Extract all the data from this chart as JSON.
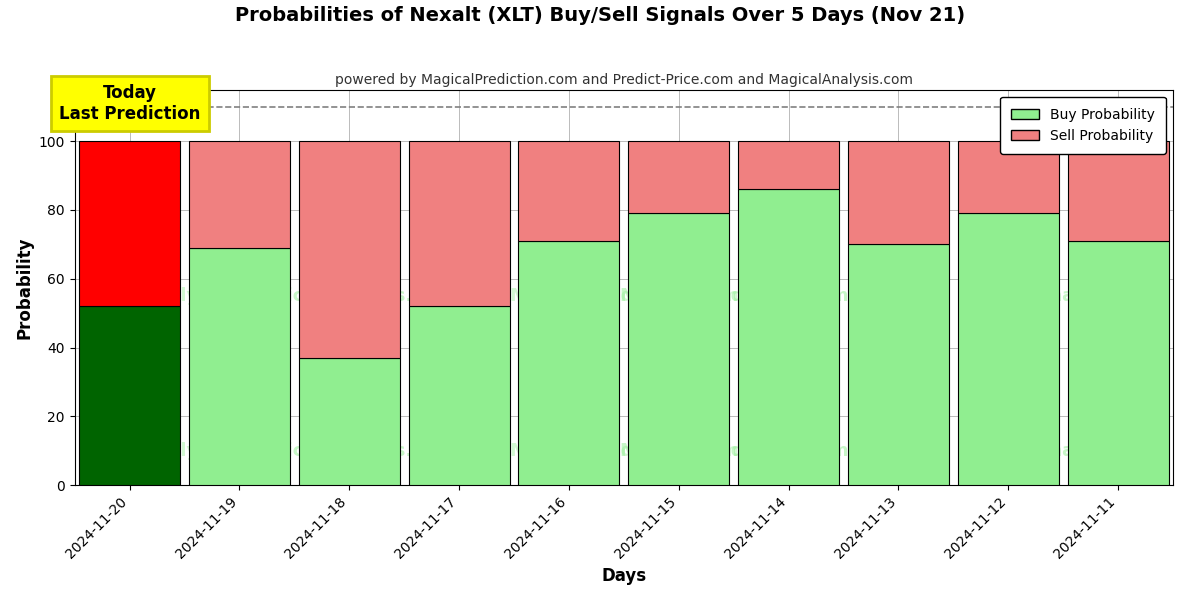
{
  "title": "Probabilities of Nexalt (XLT) Buy/Sell Signals Over 5 Days (Nov 21)",
  "subtitle": "powered by MagicalPrediction.com and Predict-Price.com and MagicalAnalysis.com",
  "xlabel": "Days",
  "ylabel": "Probability",
  "categories": [
    "2024-11-20",
    "2024-11-19",
    "2024-11-18",
    "2024-11-17",
    "2024-11-16",
    "2024-11-15",
    "2024-11-14",
    "2024-11-13",
    "2024-11-12",
    "2024-11-11"
  ],
  "buy_values": [
    52,
    69,
    37,
    52,
    71,
    79,
    86,
    70,
    79,
    71
  ],
  "sell_values": [
    48,
    31,
    63,
    48,
    29,
    21,
    14,
    30,
    21,
    29
  ],
  "today_buy_color": "#006400",
  "today_sell_color": "#FF0000",
  "normal_buy_color": "#90EE90",
  "normal_sell_color": "#F08080",
  "bar_edge_color": "#000000",
  "today_annotation_text": "Today\nLast Prediction",
  "today_annotation_bg": "#FFFF00",
  "legend_buy_label": "Buy Probability",
  "legend_sell_label": "Sell Probability",
  "ylim": [
    0,
    115
  ],
  "dashed_line_y": 110,
  "background_color": "#ffffff",
  "grid_color": "#bbbbbb"
}
